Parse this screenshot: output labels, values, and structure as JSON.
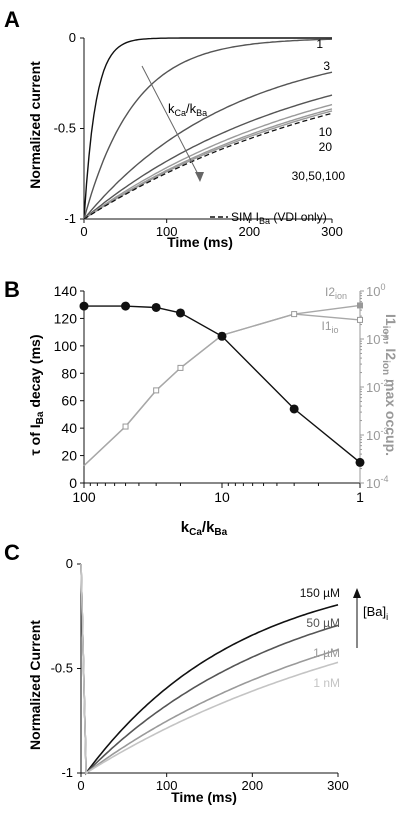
{
  "colors": {
    "axis": "#111111",
    "gray_axis": "#999999",
    "dark": "#111111",
    "mid": "#555555",
    "light": "#9a9a9a",
    "lighter": "#c4c4c4"
  },
  "chart_data": [
    {
      "panel": "A",
      "type": "line",
      "xlabel": "Time (ms)",
      "ylabel": "Normalized current",
      "xlim": [
        0,
        300
      ],
      "ylim": [
        -1,
        0
      ],
      "xticks": [
        "0",
        "100",
        "200",
        "300"
      ],
      "yticks": [
        "0",
        "-0.5",
        "-1"
      ],
      "tau_by_ratio": [
        14,
        60,
        180,
        260,
        300,
        320,
        330
      ],
      "series": [
        {
          "name": "1",
          "curve_label": "1"
        },
        {
          "name": "3",
          "curve_label": "3"
        },
        {
          "name": "10",
          "curve_label": "10"
        },
        {
          "name": "20",
          "curve_label": "20"
        },
        {
          "name": "30"
        },
        {
          "name": "50"
        },
        {
          "name": "100",
          "curve_label": "30,50,100"
        },
        {
          "name": "SIM I_Ba (VDI only)",
          "dashed": true
        }
      ],
      "arrow_label": "kCa/kBa",
      "legend": "SIM IBa (VDI only)"
    },
    {
      "panel": "B",
      "type": "scatter",
      "xlabel": "kCa/kBa",
      "xscale": "log-reversed",
      "xlim": [
        100,
        1
      ],
      "xticks": [
        "100",
        "10",
        "1"
      ],
      "left_axis": {
        "label": "τ of IBa decay (ms)",
        "ylim": [
          0,
          140
        ],
        "yticks": [
          "0",
          "20",
          "40",
          "60",
          "80",
          "100",
          "120",
          "140"
        ]
      },
      "right_axis": {
        "label": "I1ion, I2ion max occup.",
        "scale": "log",
        "ylim": [
          0.0001,
          1
        ],
        "yticks": [
          "10-4",
          "10-3",
          "10-2",
          "10-1",
          "100"
        ]
      },
      "series": [
        {
          "name": "tau",
          "axis": "left",
          "x": [
            100,
            50,
            30,
            20,
            10,
            3,
            1
          ],
          "y": [
            129,
            129,
            128,
            124,
            107,
            54,
            15
          ]
        },
        {
          "name": "I2ion",
          "label": "I2ion",
          "axis": "right",
          "x": [
            100,
            50,
            30,
            20,
            10,
            3,
            1
          ],
          "y": [
            0.00023,
            0.0015,
            0.0085,
            0.025,
            0.12,
            0.33,
            0.5
          ]
        },
        {
          "name": "I1io",
          "label": "I1io",
          "axis": "right",
          "x": [
            100,
            50,
            30,
            20,
            10,
            3,
            1
          ],
          "y": [
            0.00023,
            0.0015,
            0.0085,
            0.025,
            0.12,
            0.33,
            0.25
          ]
        }
      ]
    },
    {
      "panel": "C",
      "type": "line",
      "xlabel": "Time (ms)",
      "ylabel": "Normalized Current",
      "xlim": [
        0,
        300
      ],
      "ylim": [
        -1,
        0
      ],
      "xticks": [
        "0",
        "100",
        "200",
        "300"
      ],
      "yticks": [
        "0",
        "-0.5",
        "-1"
      ],
      "tau_by_series": [
        180,
        240,
        330,
        390
      ],
      "series": [
        {
          "name": "150 µM"
        },
        {
          "name": "50 µM"
        },
        {
          "name": "1 µM"
        },
        {
          "name": "1 nM"
        }
      ],
      "arrow_label": "[Ba]i"
    }
  ]
}
